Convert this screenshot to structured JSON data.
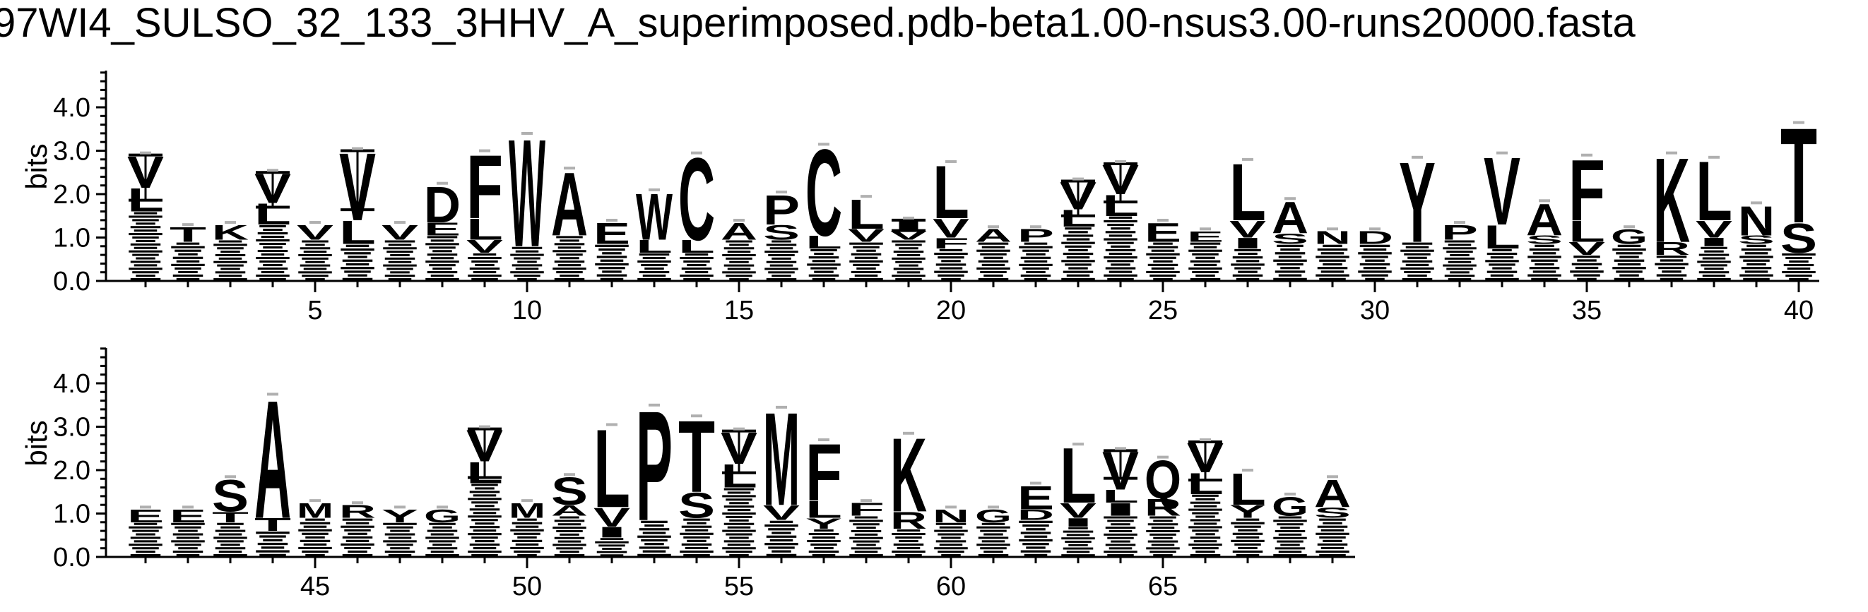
{
  "title": "97WI4_SULSO_32_133_3HHV_A_superimposed.pdb-beta1.00-nsus3.00-runs20000.fasta",
  "chart_data": {
    "type": "sequence-logo",
    "ylabel": "bits",
    "ylim": [
      0,
      4.8
    ],
    "yticks": [
      "0.0",
      "1.0",
      "2.0",
      "3.0",
      "4.0"
    ],
    "ytick_values": [
      0,
      1,
      2,
      3,
      4
    ],
    "xticks_row1": [
      5,
      10,
      15,
      20,
      25,
      30,
      35,
      40
    ],
    "xticks_row2": [
      45,
      50,
      55,
      60,
      65
    ],
    "rows": [
      [
        1,
        40
      ],
      [
        41,
        69
      ]
    ],
    "positions": [
      {
        "pos": 1,
        "total": 2.9,
        "err": 0.65,
        "stack": [
          [
            "V",
            0.75
          ],
          [
            "L",
            0.55
          ]
        ]
      },
      {
        "pos": 2,
        "total": 1.25,
        "err": 0,
        "stack": [
          [
            "T",
            0.35
          ]
        ]
      },
      {
        "pos": 3,
        "total": 1.3,
        "err": 0,
        "stack": [
          [
            "K",
            0.35
          ]
        ]
      },
      {
        "pos": 4,
        "total": 2.5,
        "err": 0.5,
        "stack": [
          [
            "V",
            0.7
          ],
          [
            "L",
            0.5
          ]
        ]
      },
      {
        "pos": 5,
        "total": 1.3,
        "err": 0,
        "stack": [
          [
            "V",
            0.35
          ]
        ]
      },
      {
        "pos": 6,
        "total": 3.0,
        "err": 0.85,
        "stack": [
          [
            "V",
            1.6
          ],
          [
            "L",
            0.55
          ]
        ]
      },
      {
        "pos": 7,
        "total": 1.3,
        "err": 0,
        "stack": [
          [
            "V",
            0.35
          ]
        ]
      },
      {
        "pos": 8,
        "total": 2.2,
        "err": 0,
        "stack": [
          [
            "D",
            0.85
          ],
          [
            "E",
            0.3
          ]
        ]
      },
      {
        "pos": 9,
        "total": 2.95,
        "err": 0,
        "stack": [
          [
            "F",
            1.5
          ],
          [
            "L",
            0.5
          ],
          [
            "V",
            0.3
          ]
        ]
      },
      {
        "pos": 10,
        "total": 3.35,
        "err": 0,
        "stack": [
          [
            "W",
            2.55
          ]
        ]
      },
      {
        "pos": 11,
        "total": 2.55,
        "err": 0,
        "stack": [
          [
            "A",
            1.5
          ]
        ]
      },
      {
        "pos": 12,
        "total": 1.35,
        "err": 0,
        "stack": [
          [
            "E",
            0.5
          ]
        ]
      },
      {
        "pos": 13,
        "total": 2.05,
        "err": 0,
        "stack": [
          [
            "W",
            1.1
          ],
          [
            "L",
            0.3
          ]
        ]
      },
      {
        "pos": 14,
        "total": 2.9,
        "err": 0,
        "stack": [
          [
            "C",
            1.95
          ],
          [
            "L",
            0.3
          ]
        ]
      },
      {
        "pos": 15,
        "total": 1.35,
        "err": 0,
        "stack": [
          [
            "A",
            0.4
          ]
        ]
      },
      {
        "pos": 16,
        "total": 2.0,
        "err": 0,
        "stack": [
          [
            "P",
            0.7
          ],
          [
            "S",
            0.35
          ]
        ]
      },
      {
        "pos": 17,
        "total": 3.1,
        "err": 0,
        "stack": [
          [
            "C",
            2.05
          ],
          [
            "L",
            0.3
          ]
        ]
      },
      {
        "pos": 18,
        "total": 1.9,
        "err": 0,
        "stack": [
          [
            "L",
            0.7
          ],
          [
            "V",
            0.3
          ]
        ]
      },
      {
        "pos": 19,
        "total": 1.4,
        "err": 0.15,
        "stack": [
          [
            "I",
            0.25
          ],
          [
            "V",
            0.2
          ]
        ]
      },
      {
        "pos": 20,
        "total": 2.7,
        "err": 0,
        "stack": [
          [
            "L",
            1.25
          ],
          [
            "V",
            0.45
          ],
          [
            "F",
            0.25
          ]
        ]
      },
      {
        "pos": 21,
        "total": 1.2,
        "err": 0,
        "stack": [
          [
            "A",
            0.3
          ]
        ]
      },
      {
        "pos": 22,
        "total": 1.2,
        "err": 0,
        "stack": [
          [
            "P",
            0.3
          ]
        ]
      },
      {
        "pos": 23,
        "total": 2.3,
        "err": 0.5,
        "stack": [
          [
            "V",
            0.65
          ],
          [
            "L",
            0.4
          ]
        ]
      },
      {
        "pos": 24,
        "total": 2.7,
        "err": 0.55,
        "stack": [
          [
            "V",
            0.7
          ],
          [
            "L",
            0.5
          ]
        ]
      },
      {
        "pos": 25,
        "total": 1.35,
        "err": 0,
        "stack": [
          [
            "E",
            0.45
          ]
        ]
      },
      {
        "pos": 26,
        "total": 1.15,
        "err": 0,
        "stack": [
          [
            "E",
            0.25
          ]
        ]
      },
      {
        "pos": 27,
        "total": 2.75,
        "err": 0,
        "stack": [
          [
            "L",
            1.35
          ],
          [
            "V",
            0.4
          ],
          [
            "I",
            0.25
          ]
        ]
      },
      {
        "pos": 28,
        "total": 1.85,
        "err": 0,
        "stack": [
          [
            "A",
            0.75
          ],
          [
            "S",
            0.25
          ]
        ]
      },
      {
        "pos": 29,
        "total": 1.15,
        "err": 0,
        "stack": [
          [
            "N",
            0.3
          ]
        ]
      },
      {
        "pos": 30,
        "total": 1.15,
        "err": 0,
        "stack": [
          [
            "D",
            0.3
          ]
        ]
      },
      {
        "pos": 31,
        "total": 2.8,
        "err": 0,
        "stack": [
          [
            "Y",
            1.9
          ]
        ]
      },
      {
        "pos": 32,
        "total": 1.3,
        "err": 0,
        "stack": [
          [
            "P",
            0.35
          ]
        ]
      },
      {
        "pos": 33,
        "total": 2.9,
        "err": 0,
        "stack": [
          [
            "V",
            1.6
          ],
          [
            "L",
            0.55
          ]
        ]
      },
      {
        "pos": 34,
        "total": 1.8,
        "err": 0,
        "stack": [
          [
            "A",
            0.75
          ],
          [
            "S",
            0.2
          ]
        ]
      },
      {
        "pos": 35,
        "total": 2.85,
        "err": 0,
        "stack": [
          [
            "F",
            1.45
          ],
          [
            "L",
            0.5
          ],
          [
            "V",
            0.3
          ]
        ]
      },
      {
        "pos": 36,
        "total": 1.2,
        "err": 0,
        "stack": [
          [
            "G",
            0.35
          ]
        ]
      },
      {
        "pos": 37,
        "total": 2.9,
        "err": 0,
        "stack": [
          [
            "K",
            2.0
          ],
          [
            "R",
            0.3
          ]
        ]
      },
      {
        "pos": 38,
        "total": 2.8,
        "err": 0,
        "stack": [
          [
            "L",
            1.4
          ],
          [
            "V",
            0.4
          ],
          [
            "I",
            0.2
          ]
        ]
      },
      {
        "pos": 39,
        "total": 1.75,
        "err": 0,
        "stack": [
          [
            "N",
            0.7
          ],
          [
            "S",
            0.2
          ]
        ]
      },
      {
        "pos": 40,
        "total": 3.6,
        "err": 0,
        "stack": [
          [
            "T",
            2.25
          ],
          [
            "S",
            0.7
          ]
        ]
      },
      {
        "pos": 41,
        "total": 1.1,
        "err": 0,
        "stack": [
          [
            "E",
            0.3
          ]
        ]
      },
      {
        "pos": 42,
        "total": 1.1,
        "err": 0,
        "stack": [
          [
            "E",
            0.3
          ]
        ]
      },
      {
        "pos": 43,
        "total": 1.8,
        "err": 0,
        "stack": [
          [
            "S",
            0.75
          ],
          [
            "T",
            0.25
          ]
        ]
      },
      {
        "pos": 44,
        "total": 3.7,
        "err": 0,
        "stack": [
          [
            "A",
            2.8
          ],
          [
            "T",
            0.3
          ]
        ]
      },
      {
        "pos": 45,
        "total": 1.25,
        "err": 0,
        "stack": [
          [
            "M",
            0.35
          ]
        ]
      },
      {
        "pos": 46,
        "total": 1.2,
        "err": 0,
        "stack": [
          [
            "R",
            0.3
          ]
        ]
      },
      {
        "pos": 47,
        "total": 1.1,
        "err": 0,
        "stack": [
          [
            "Y",
            0.3
          ]
        ]
      },
      {
        "pos": 48,
        "total": 1.1,
        "err": 0,
        "stack": [
          [
            "G",
            0.3
          ]
        ]
      },
      {
        "pos": 49,
        "total": 2.95,
        "err": 0.7,
        "stack": [
          [
            "V",
            0.75
          ],
          [
            "L",
            0.5
          ]
        ]
      },
      {
        "pos": 50,
        "total": 1.25,
        "err": 0,
        "stack": [
          [
            "M",
            0.35
          ]
        ]
      },
      {
        "pos": 51,
        "total": 1.85,
        "err": 0,
        "stack": [
          [
            "S",
            0.65
          ],
          [
            "A",
            0.25
          ]
        ]
      },
      {
        "pos": 52,
        "total": 3.0,
        "err": 0,
        "stack": [
          [
            "L",
            1.85
          ],
          [
            "V",
            0.45
          ],
          [
            "I",
            0.25
          ]
        ]
      },
      {
        "pos": 53,
        "total": 3.45,
        "err": 0,
        "stack": [
          [
            "P",
            2.6
          ]
        ]
      },
      {
        "pos": 54,
        "total": 3.2,
        "err": 0,
        "stack": [
          [
            "T",
            1.7
          ],
          [
            "S",
            0.6
          ]
        ]
      },
      {
        "pos": 55,
        "total": 2.9,
        "err": 0.6,
        "stack": [
          [
            "V",
            0.75
          ],
          [
            "L",
            0.55
          ]
        ]
      },
      {
        "pos": 56,
        "total": 3.4,
        "err": 0,
        "stack": [
          [
            "M",
            2.2
          ],
          [
            "V",
            0.35
          ]
        ]
      },
      {
        "pos": 57,
        "total": 2.65,
        "err": 0,
        "stack": [
          [
            "F",
            1.35
          ],
          [
            "L",
            0.4
          ],
          [
            "Y",
            0.25
          ]
        ]
      },
      {
        "pos": 58,
        "total": 1.25,
        "err": 0,
        "stack": [
          [
            "F",
            0.3
          ]
        ]
      },
      {
        "pos": 59,
        "total": 2.8,
        "err": 0,
        "stack": [
          [
            "K",
            1.75
          ],
          [
            "R",
            0.4
          ]
        ]
      },
      {
        "pos": 60,
        "total": 1.1,
        "err": 0,
        "stack": [
          [
            "N",
            0.3
          ]
        ]
      },
      {
        "pos": 61,
        "total": 1.1,
        "err": 0,
        "stack": [
          [
            "G",
            0.3
          ]
        ]
      },
      {
        "pos": 62,
        "total": 1.65,
        "err": 0,
        "stack": [
          [
            "E",
            0.55
          ],
          [
            "D",
            0.25
          ]
        ]
      },
      {
        "pos": 63,
        "total": 2.55,
        "err": 0,
        "stack": [
          [
            "L",
            1.3
          ],
          [
            "V",
            0.35
          ],
          [
            "I",
            0.2
          ]
        ]
      },
      {
        "pos": 64,
        "total": 2.45,
        "err": 0.4,
        "stack": [
          [
            "V",
            0.9
          ],
          [
            "I",
            0.3
          ],
          [
            "L",
            0.3
          ]
        ]
      },
      {
        "pos": 65,
        "total": 2.25,
        "err": 0,
        "stack": [
          [
            "Q",
            0.9
          ],
          [
            "R",
            0.4
          ]
        ]
      },
      {
        "pos": 66,
        "total": 2.65,
        "err": 0.55,
        "stack": [
          [
            "V",
            0.7
          ],
          [
            "L",
            0.5
          ]
        ]
      },
      {
        "pos": 67,
        "total": 1.95,
        "err": 0,
        "stack": [
          [
            "L",
            0.75
          ],
          [
            "Y",
            0.3
          ]
        ]
      },
      {
        "pos": 68,
        "total": 1.4,
        "err": 0,
        "stack": [
          [
            "G",
            0.45
          ]
        ]
      },
      {
        "pos": 69,
        "total": 1.8,
        "err": 0,
        "stack": [
          [
            "A",
            0.65
          ],
          [
            "S",
            0.25
          ]
        ]
      }
    ]
  }
}
